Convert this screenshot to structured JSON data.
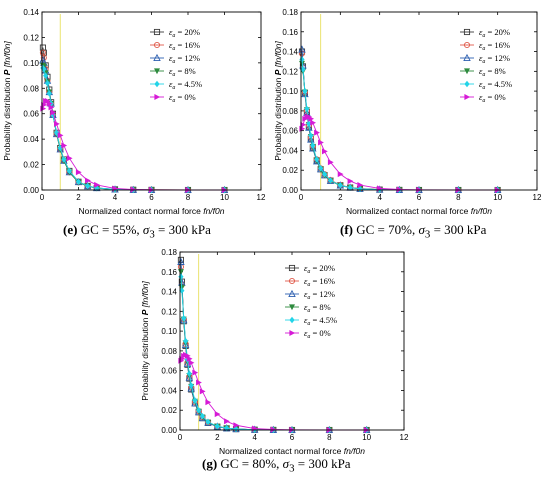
{
  "captions": [
    {
      "prefix": "(e)",
      "gc": "GC = 55%,",
      "sigma": "σ",
      "sub": "3",
      "rest": " = 300 kPa"
    },
    {
      "prefix": "(f)",
      "gc": "GC = 70%,",
      "sigma": "σ",
      "sub": "3",
      "rest": " = 300 kPa"
    },
    {
      "prefix": "(g)",
      "gc": "GC = 80%,",
      "sigma": "σ",
      "sub": "3",
      "rest": " = 300 kPa"
    }
  ],
  "colors": {
    "s20": "#3a3a3a",
    "s16": "#e05a4a",
    "s12": "#2c5fb0",
    "s8": "#2e8b3e",
    "s45": "#22d4e8",
    "s0": "#d61ad6",
    "marker_line": "#e8e060"
  },
  "chart_data": [
    {
      "type": "line",
      "panel": "e",
      "xlabel": "Normalized contact normal force f_n/f_0^n",
      "ylabel": "Probability distribution P [f_n/f_0^n]",
      "xlim": [
        0,
        12
      ],
      "ylim": [
        0,
        0.14
      ],
      "xticks": [
        "0",
        "2",
        "4",
        "6",
        "8",
        "10",
        "12"
      ],
      "yticks": [
        "0.00",
        "0.02",
        "0.04",
        "0.06",
        "0.08",
        "0.10",
        "0.12",
        "0.14"
      ],
      "marker_line_x": 1.0,
      "legend_position": "top-right",
      "series": [
        {
          "name": "εa = 20%",
          "key": "s20",
          "marker": "square-open",
          "x": [
            0.05,
            0.1,
            0.2,
            0.3,
            0.4,
            0.5,
            0.6,
            0.8,
            1.0,
            1.2,
            1.5,
            2.0,
            2.5,
            3.0,
            4.0,
            5.0,
            6.0,
            8.0,
            10.0
          ],
          "y": [
            0.112,
            0.108,
            0.098,
            0.089,
            0.079,
            0.069,
            0.06,
            0.045,
            0.033,
            0.024,
            0.015,
            0.0065,
            0.0032,
            0.0016,
            0.0005,
            0.0002,
            0.0001,
            0.0,
            0.0
          ]
        },
        {
          "name": "εa = 16%",
          "key": "s16",
          "marker": "circle-open",
          "x": [
            0.05,
            0.1,
            0.2,
            0.3,
            0.4,
            0.5,
            0.6,
            0.8,
            1.0,
            1.2,
            1.5,
            2.0,
            2.5,
            3.0,
            4.0,
            5.0,
            6.0,
            8.0,
            10.0
          ],
          "y": [
            0.108,
            0.104,
            0.095,
            0.086,
            0.077,
            0.068,
            0.059,
            0.044,
            0.032,
            0.023,
            0.014,
            0.006,
            0.003,
            0.0015,
            0.0004,
            0.0001,
            0.0001,
            0.0,
            0.0
          ]
        },
        {
          "name": "εa = 12%",
          "key": "s12",
          "marker": "triangle-open",
          "x": [
            0.05,
            0.1,
            0.2,
            0.3,
            0.4,
            0.5,
            0.6,
            0.8,
            1.0,
            1.2,
            1.5,
            2.0,
            2.5,
            3.0,
            4.0,
            5.0,
            6.0,
            8.0,
            10.0
          ],
          "y": [
            0.102,
            0.1,
            0.094,
            0.086,
            0.077,
            0.068,
            0.059,
            0.044,
            0.032,
            0.023,
            0.014,
            0.0062,
            0.003,
            0.0015,
            0.0004,
            0.0001,
            0.0,
            0.0,
            0.0
          ]
        },
        {
          "name": "εa = 8%",
          "key": "s8",
          "marker": "triangle-down",
          "x": [
            0.05,
            0.1,
            0.2,
            0.3,
            0.4,
            0.5,
            0.6,
            0.8,
            1.0,
            1.2,
            1.5,
            2.0,
            2.5,
            3.0,
            4.0,
            5.0,
            6.0,
            8.0,
            10.0
          ],
          "y": [
            0.098,
            0.097,
            0.092,
            0.085,
            0.077,
            0.068,
            0.059,
            0.044,
            0.032,
            0.023,
            0.014,
            0.006,
            0.003,
            0.0014,
            0.0004,
            0.0001,
            0.0,
            0.0,
            0.0
          ]
        },
        {
          "name": "εa = 4.5%",
          "key": "s45",
          "marker": "diamond",
          "x": [
            0.05,
            0.1,
            0.2,
            0.3,
            0.4,
            0.5,
            0.6,
            0.8,
            1.0,
            1.2,
            1.5,
            2.0,
            2.5,
            3.0,
            4.0,
            5.0,
            6.0,
            8.0,
            10.0
          ],
          "y": [
            0.096,
            0.095,
            0.09,
            0.084,
            0.076,
            0.068,
            0.059,
            0.045,
            0.033,
            0.024,
            0.015,
            0.0065,
            0.0032,
            0.0016,
            0.0005,
            0.0001,
            0.0,
            0.0,
            0.0
          ]
        },
        {
          "name": "εa = 0%",
          "key": "s0",
          "marker": "triangle-right",
          "x": [
            0.05,
            0.1,
            0.2,
            0.3,
            0.4,
            0.5,
            0.6,
            0.8,
            1.0,
            1.2,
            1.5,
            2.0,
            2.5,
            3.0,
            4.0,
            5.0,
            6.0,
            8.0,
            10.0
          ],
          "y": [
            0.064,
            0.067,
            0.07,
            0.07,
            0.068,
            0.065,
            0.061,
            0.052,
            0.043,
            0.035,
            0.025,
            0.014,
            0.0075,
            0.004,
            0.0012,
            0.0004,
            0.0001,
            0.0,
            0.0
          ]
        }
      ]
    },
    {
      "type": "line",
      "panel": "f",
      "xlabel": "Normalized contact normal force f_n/f_0^n",
      "ylabel": "Probability distribution P [f_n/f_0^n]",
      "xlim": [
        0,
        12
      ],
      "ylim": [
        0,
        0.18
      ],
      "xticks": [
        "0",
        "2",
        "4",
        "6",
        "8",
        "10",
        "12"
      ],
      "yticks": [
        "0.00",
        "0.02",
        "0.04",
        "0.06",
        "0.08",
        "0.10",
        "0.12",
        "0.14",
        "0.16",
        "0.18"
      ],
      "marker_line_x": 1.0,
      "legend_position": "top-right",
      "series": [
        {
          "name": "εa = 20%",
          "key": "s20",
          "marker": "square-open",
          "x": [
            0.05,
            0.1,
            0.2,
            0.3,
            0.4,
            0.5,
            0.6,
            0.8,
            1.0,
            1.2,
            1.5,
            2.0,
            2.5,
            3.0,
            4.0,
            5.0,
            6.0,
            8.0,
            10.0
          ],
          "y": [
            0.14,
            0.125,
            0.098,
            0.079,
            0.064,
            0.052,
            0.043,
            0.03,
            0.021,
            0.015,
            0.0095,
            0.0048,
            0.0025,
            0.0013,
            0.0004,
            0.0001,
            0.0,
            0.0,
            0.0
          ]
        },
        {
          "name": "εa = 16%",
          "key": "s16",
          "marker": "circle-open",
          "x": [
            0.05,
            0.1,
            0.2,
            0.3,
            0.4,
            0.5,
            0.6,
            0.8,
            1.0,
            1.2,
            1.5,
            2.0,
            2.5,
            3.0,
            4.0,
            5.0,
            6.0,
            8.0,
            10.0
          ],
          "y": [
            0.138,
            0.124,
            0.099,
            0.08,
            0.065,
            0.053,
            0.044,
            0.031,
            0.022,
            0.016,
            0.01,
            0.005,
            0.0026,
            0.0014,
            0.0004,
            0.0001,
            0.0,
            0.0,
            0.0
          ]
        },
        {
          "name": "εa = 12%",
          "key": "s12",
          "marker": "triangle-open",
          "x": [
            0.05,
            0.1,
            0.2,
            0.3,
            0.4,
            0.5,
            0.6,
            0.8,
            1.0,
            1.2,
            1.5,
            2.0,
            2.5,
            3.0,
            4.0,
            5.0,
            6.0,
            8.0,
            10.0
          ],
          "y": [
            0.142,
            0.126,
            0.097,
            0.078,
            0.063,
            0.051,
            0.042,
            0.029,
            0.021,
            0.015,
            0.0093,
            0.0046,
            0.0024,
            0.0012,
            0.0004,
            0.0001,
            0.0,
            0.0,
            0.0
          ]
        },
        {
          "name": "εa = 8%",
          "key": "s8",
          "marker": "triangle-down",
          "x": [
            0.05,
            0.1,
            0.2,
            0.3,
            0.4,
            0.5,
            0.6,
            0.8,
            1.0,
            1.2,
            1.5,
            2.0,
            2.5,
            3.0,
            4.0,
            5.0,
            6.0,
            8.0,
            10.0
          ],
          "y": [
            0.128,
            0.12,
            0.099,
            0.081,
            0.066,
            0.054,
            0.044,
            0.03,
            0.021,
            0.015,
            0.0092,
            0.0045,
            0.0023,
            0.0012,
            0.0003,
            0.0001,
            0.0,
            0.0,
            0.0
          ]
        },
        {
          "name": "εa = 4.5%",
          "key": "s45",
          "marker": "diamond",
          "x": [
            0.05,
            0.1,
            0.2,
            0.3,
            0.4,
            0.5,
            0.6,
            0.8,
            1.0,
            1.2,
            1.5,
            2.0,
            2.5,
            3.0,
            4.0,
            5.0,
            6.0,
            8.0,
            10.0
          ],
          "y": [
            0.132,
            0.122,
            0.1,
            0.082,
            0.067,
            0.055,
            0.045,
            0.031,
            0.022,
            0.016,
            0.0097,
            0.0047,
            0.0024,
            0.0012,
            0.0003,
            0.0001,
            0.0,
            0.0,
            0.0
          ]
        },
        {
          "name": "εa = 0%",
          "key": "s0",
          "marker": "triangle-right",
          "x": [
            0.05,
            0.1,
            0.2,
            0.3,
            0.4,
            0.5,
            0.6,
            0.8,
            1.0,
            1.2,
            1.5,
            2.0,
            2.5,
            3.0,
            4.0,
            5.0,
            6.0,
            8.0,
            10.0
          ],
          "y": [
            0.062,
            0.066,
            0.072,
            0.074,
            0.074,
            0.072,
            0.068,
            0.058,
            0.048,
            0.039,
            0.028,
            0.016,
            0.009,
            0.005,
            0.0016,
            0.0005,
            0.0002,
            0.0,
            0.0
          ]
        }
      ]
    },
    {
      "type": "line",
      "panel": "g",
      "xlabel": "Normalized contact normal force f_n/f_0^n",
      "ylabel": "Probability distribution P [f_n/f_0^n]",
      "xlim": [
        0,
        12
      ],
      "ylim": [
        0,
        0.18
      ],
      "xticks": [
        "0",
        "2",
        "4",
        "6",
        "8",
        "10",
        "12"
      ],
      "yticks": [
        "0.00",
        "0.02",
        "0.04",
        "0.06",
        "0.08",
        "0.10",
        "0.12",
        "0.14",
        "0.16",
        "0.18"
      ],
      "marker_line_x": 1.0,
      "legend_position": "top-right",
      "series": [
        {
          "name": "εa = 20%",
          "key": "s20",
          "marker": "square-open",
          "x": [
            0.05,
            0.1,
            0.2,
            0.3,
            0.4,
            0.5,
            0.6,
            0.8,
            1.0,
            1.2,
            1.5,
            2.0,
            2.5,
            3.0,
            4.0,
            5.0,
            6.0,
            8.0,
            10.0
          ],
          "y": [
            0.172,
            0.15,
            0.11,
            0.085,
            0.066,
            0.052,
            0.041,
            0.027,
            0.018,
            0.012,
            0.0072,
            0.0034,
            0.0017,
            0.0009,
            0.0003,
            0.0001,
            0.0,
            0.0,
            0.0
          ]
        },
        {
          "name": "εa = 16%",
          "key": "s16",
          "marker": "circle-open",
          "x": [
            0.05,
            0.1,
            0.2,
            0.3,
            0.4,
            0.5,
            0.6,
            0.8,
            1.0,
            1.2,
            1.5,
            2.0,
            2.5,
            3.0,
            4.0,
            5.0,
            6.0,
            8.0,
            10.0
          ],
          "y": [
            0.165,
            0.147,
            0.112,
            0.087,
            0.068,
            0.054,
            0.043,
            0.028,
            0.019,
            0.013,
            0.0078,
            0.0036,
            0.0018,
            0.0009,
            0.0003,
            0.0001,
            0.0,
            0.0,
            0.0
          ]
        },
        {
          "name": "εa = 12%",
          "key": "s12",
          "marker": "triangle-open",
          "x": [
            0.05,
            0.1,
            0.2,
            0.3,
            0.4,
            0.5,
            0.6,
            0.8,
            1.0,
            1.2,
            1.5,
            2.0,
            2.5,
            3.0,
            4.0,
            5.0,
            6.0,
            8.0,
            10.0
          ],
          "y": [
            0.17,
            0.149,
            0.111,
            0.086,
            0.067,
            0.053,
            0.042,
            0.027,
            0.018,
            0.012,
            0.0074,
            0.0035,
            0.0017,
            0.0009,
            0.0003,
            0.0001,
            0.0,
            0.0,
            0.0
          ]
        },
        {
          "name": "εa = 8%",
          "key": "s8",
          "marker": "triangle-down",
          "x": [
            0.05,
            0.1,
            0.2,
            0.3,
            0.4,
            0.5,
            0.6,
            0.8,
            1.0,
            1.2,
            1.5,
            2.0,
            2.5,
            3.0,
            4.0,
            5.0,
            6.0,
            8.0,
            10.0
          ],
          "y": [
            0.16,
            0.144,
            0.112,
            0.088,
            0.069,
            0.055,
            0.044,
            0.029,
            0.019,
            0.013,
            0.0078,
            0.0036,
            0.0018,
            0.0009,
            0.0003,
            0.0001,
            0.0,
            0.0,
            0.0
          ]
        },
        {
          "name": "εa = 4.5%",
          "key": "s45",
          "marker": "diamond",
          "x": [
            0.05,
            0.1,
            0.2,
            0.3,
            0.4,
            0.5,
            0.6,
            0.8,
            1.0,
            1.2,
            1.5,
            2.0,
            2.5,
            3.0,
            4.0,
            5.0,
            6.0,
            8.0,
            10.0
          ],
          "y": [
            0.155,
            0.141,
            0.113,
            0.09,
            0.071,
            0.057,
            0.045,
            0.03,
            0.02,
            0.014,
            0.0082,
            0.0038,
            0.0019,
            0.001,
            0.0003,
            0.0001,
            0.0,
            0.0,
            0.0
          ]
        },
        {
          "name": "εa = 0%",
          "key": "s0",
          "marker": "triangle-right",
          "x": [
            0.05,
            0.1,
            0.2,
            0.3,
            0.4,
            0.5,
            0.6,
            0.8,
            1.0,
            1.2,
            1.5,
            2.0,
            2.5,
            3.0,
            4.0,
            5.0,
            6.0,
            8.0,
            10.0
          ],
          "y": [
            0.07,
            0.072,
            0.075,
            0.076,
            0.075,
            0.072,
            0.068,
            0.058,
            0.048,
            0.039,
            0.028,
            0.016,
            0.0088,
            0.0048,
            0.0015,
            0.0005,
            0.0002,
            0.0,
            0.0
          ]
        }
      ]
    }
  ]
}
